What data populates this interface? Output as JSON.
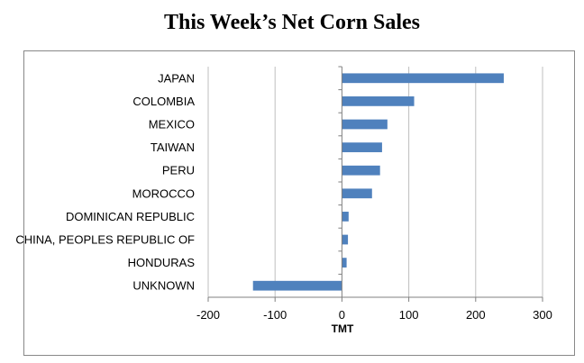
{
  "chart_data": {
    "type": "bar",
    "orientation": "horizontal",
    "title": "This Week’s Net Corn Sales",
    "xlabel": "TMT",
    "ylabel": "",
    "categories": [
      "JAPAN",
      "COLOMBIA",
      "MEXICO",
      "TAIWAN",
      "PERU",
      "MOROCCO",
      "DOMINICAN REPUBLIC",
      "CHINA, PEOPLES REPUBLIC OF",
      "HONDURAS",
      "UNKNOWN"
    ],
    "values": [
      242,
      108,
      68,
      60,
      57,
      45,
      10,
      9,
      7,
      -133
    ],
    "xlim": [
      -200,
      300
    ],
    "xticks": [
      -200,
      -100,
      0,
      100,
      200,
      300
    ],
    "xtick_labels": [
      "-200",
      "-100",
      "0",
      "100",
      "200",
      "300"
    ],
    "grid": "vertical",
    "legend": "none",
    "bar_color": "#4f81bd",
    "grid_color": "#bfbfbf",
    "axis_color": "#808080"
  }
}
